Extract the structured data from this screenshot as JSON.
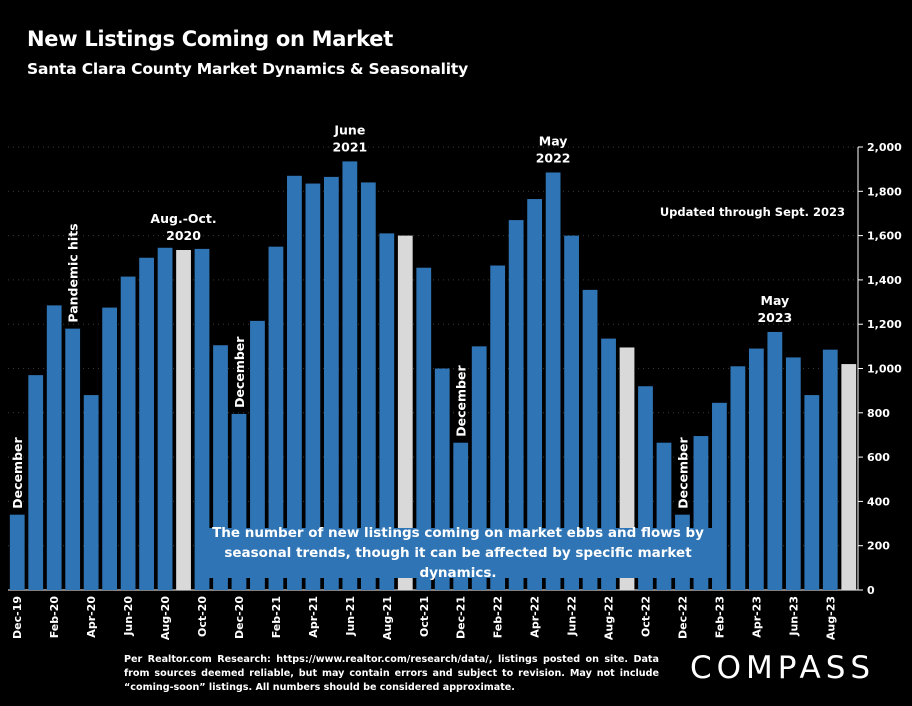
{
  "header": {
    "title": "New Listings Coming on Market",
    "subtitle": "Santa Clara County Market Dynamics & Seasonality"
  },
  "callout": {
    "line1": "The number of new listings coming on market ebbs and flows by",
    "line2": "seasonal trends, though it can be affected by specific market dynamics."
  },
  "footnote": "Per Realtor.com Research: https://www.realtor.com/research/data/, listings posted on site. Data from sources deemed reliable, but may contain errors and subject to revision. May not include “coming-soon” listings. All numbers should be considered approximate.",
  "logo": "COMPASS",
  "colors": {
    "bar": "#2f75b5",
    "highlight": "#d9d9d9",
    "background": "#000000",
    "text": "#ffffff"
  },
  "chart_data": {
    "type": "bar",
    "categories": [
      "Dec-19",
      "Jan-20",
      "Feb-20",
      "Mar-20",
      "Apr-20",
      "May-20",
      "Jun-20",
      "Jul-20",
      "Aug-20",
      "Sep-20",
      "Oct-20",
      "Nov-20",
      "Dec-20",
      "Jan-21",
      "Feb-21",
      "Mar-21",
      "Apr-21",
      "May-21",
      "Jun-21",
      "Jul-21",
      "Aug-21",
      "Sep-21",
      "Oct-21",
      "Nov-21",
      "Dec-21",
      "Jan-22",
      "Feb-22",
      "Mar-22",
      "Apr-22",
      "May-22",
      "Jun-22",
      "Jul-22",
      "Aug-22",
      "Sep-22",
      "Oct-22",
      "Nov-22",
      "Dec-22",
      "Jan-23",
      "Feb-23",
      "Mar-23",
      "Apr-23",
      "May-23",
      "Jun-23",
      "Jul-23",
      "Aug-23",
      "Sep-23"
    ],
    "tick_labels": [
      "Dec-19",
      "Feb-20",
      "Apr-20",
      "Jun-20",
      "Aug-20",
      "Oct-20",
      "Dec-20",
      "Feb-21",
      "Apr-21",
      "Jun-21",
      "Aug-21",
      "Oct-21",
      "Dec-21",
      "Feb-22",
      "Apr-22",
      "Jun-22",
      "Aug-22",
      "Oct-22",
      "Dec-22",
      "Feb-23",
      "Apr-23",
      "Jun-23",
      "Aug-23"
    ],
    "values": [
      340,
      970,
      1285,
      1180,
      880,
      1275,
      1415,
      1500,
      1545,
      1535,
      1540,
      1105,
      795,
      1215,
      1550,
      1870,
      1835,
      1865,
      1935,
      1840,
      1610,
      1600,
      1455,
      1000,
      665,
      1100,
      1465,
      1670,
      1765,
      1885,
      1600,
      1355,
      1135,
      1095,
      920,
      665,
      340,
      695,
      845,
      1010,
      1090,
      1165,
      1050,
      880,
      1085,
      1020
    ],
    "highlight_categories": [
      "Sep-20",
      "Sep-21",
      "Sep-22",
      "Sep-23"
    ],
    "ylim": [
      0,
      2000
    ],
    "yticks": [
      0,
      200,
      400,
      600,
      800,
      1000,
      1200,
      1400,
      1600,
      1800,
      2000
    ],
    "grid": true,
    "y_axis_side": "right",
    "annotations": [
      {
        "category": "Dec-19",
        "text": "December",
        "rotate": true
      },
      {
        "category": "Mar-20",
        "text": "Pandemic hits",
        "rotate": true
      },
      {
        "category": "Sep-20",
        "lines": [
          "Aug.-Oct.",
          "2020"
        ]
      },
      {
        "category": "Dec-20",
        "text": "December",
        "rotate": true
      },
      {
        "category": "Jun-21",
        "lines": [
          "June",
          "2021"
        ]
      },
      {
        "category": "Dec-21",
        "text": "December",
        "rotate": true
      },
      {
        "category": "May-22",
        "lines": [
          "May",
          "2022"
        ]
      },
      {
        "category": "Dec-22",
        "text": "December",
        "rotate": true
      },
      {
        "category": "May-23",
        "lines": [
          "May",
          "2023"
        ]
      }
    ],
    "note": "Updated through Sept. 2023"
  }
}
